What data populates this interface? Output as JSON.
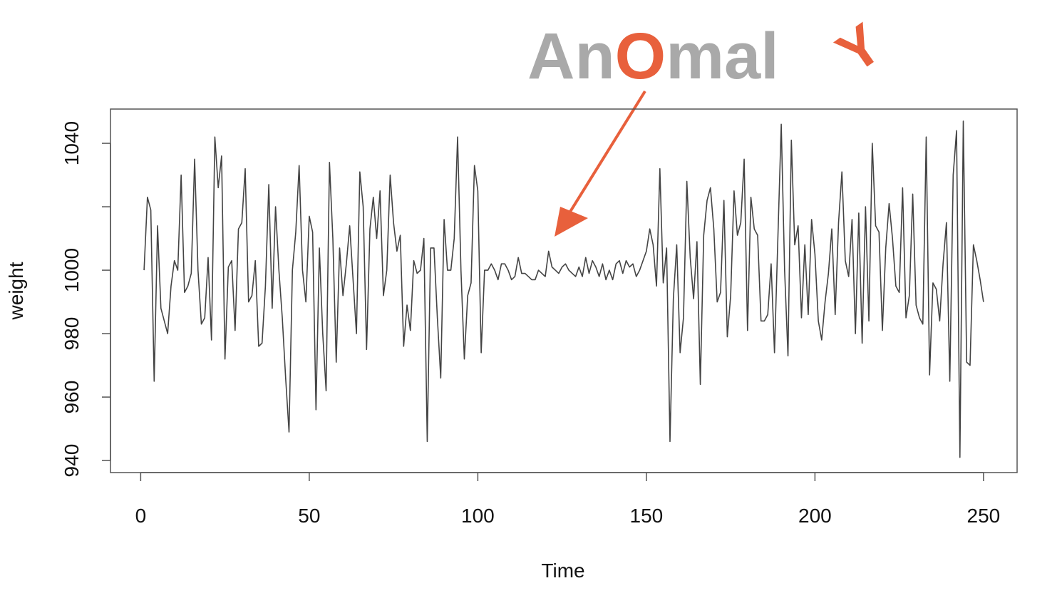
{
  "chart_data": {
    "type": "line",
    "annotation": [
      "An",
      "O",
      "mal",
      "Y"
    ],
    "xlabel": "Time",
    "ylabel": "weight",
    "x": [
      1,
      2,
      3,
      4,
      5,
      6,
      7,
      8,
      9,
      10,
      11,
      12,
      13,
      14,
      15,
      16,
      17,
      18,
      19,
      20,
      21,
      22,
      23,
      24,
      25,
      26,
      27,
      28,
      29,
      30,
      31,
      32,
      33,
      34,
      35,
      36,
      37,
      38,
      39,
      40,
      41,
      42,
      43,
      44,
      45,
      46,
      47,
      48,
      49,
      50,
      51,
      52,
      53,
      54,
      55,
      56,
      57,
      58,
      59,
      60,
      61,
      62,
      63,
      64,
      65,
      66,
      67,
      68,
      69,
      70,
      71,
      72,
      73,
      74,
      75,
      76,
      77,
      78,
      79,
      80,
      81,
      82,
      83,
      84,
      85,
      86,
      87,
      88,
      89,
      90,
      91,
      92,
      93,
      94,
      95,
      96,
      97,
      98,
      99,
      100,
      101,
      102,
      103,
      104,
      105,
      106,
      107,
      108,
      109,
      110,
      111,
      112,
      113,
      114,
      115,
      116,
      117,
      118,
      119,
      120,
      121,
      122,
      123,
      124,
      125,
      126,
      127,
      128,
      129,
      130,
      131,
      132,
      133,
      134,
      135,
      136,
      137,
      138,
      139,
      140,
      141,
      142,
      143,
      144,
      145,
      146,
      147,
      148,
      149,
      150,
      151,
      152,
      153,
      154,
      155,
      156,
      157,
      158,
      159,
      160,
      161,
      162,
      163,
      164,
      165,
      166,
      167,
      168,
      169,
      170,
      171,
      172,
      173,
      174,
      175,
      176,
      177,
      178,
      179,
      180,
      181,
      182,
      183,
      184,
      185,
      186,
      187,
      188,
      189,
      190,
      191,
      192,
      193,
      194,
      195,
      196,
      197,
      198,
      199,
      200,
      201,
      202,
      203,
      204,
      205,
      206,
      207,
      208,
      209,
      210,
      211,
      212,
      213,
      214,
      215,
      216,
      217,
      218,
      219,
      220,
      221,
      222,
      223,
      224,
      225,
      226,
      227,
      228,
      229,
      230,
      231,
      232,
      233,
      234,
      235,
      236,
      237,
      238,
      239,
      240,
      241,
      242,
      243,
      244,
      245,
      246,
      247,
      248,
      249,
      250
    ],
    "series": [
      {
        "name": "weight",
        "color": "#444444",
        "values": [
          1000,
          1023,
          1019,
          965,
          1014,
          988,
          984,
          980,
          995,
          1003,
          1000,
          1030,
          993,
          995,
          999,
          1035,
          1000,
          983,
          985,
          1004,
          978,
          1042,
          1026,
          1036,
          972,
          1001,
          1003,
          981,
          1013,
          1015,
          1032,
          990,
          992,
          1003,
          976,
          977,
          995,
          1027,
          988,
          1020,
          1000,
          985,
          966,
          949,
          1000,
          1012,
          1033,
          1000,
          990,
          1017,
          1012,
          956,
          1007,
          980,
          962,
          1034,
          1010,
          971,
          1007,
          992,
          1002,
          1014,
          997,
          980,
          1031,
          1020,
          975,
          1013,
          1023,
          1010,
          1025,
          992,
          1000,
          1030,
          1015,
          1006,
          1011,
          976,
          989,
          981,
          1003,
          999,
          1000,
          1010,
          946,
          1007,
          1007,
          985,
          966,
          1016,
          1000,
          1000,
          1010,
          1042,
          1000,
          972,
          992,
          996,
          1033,
          1025,
          974,
          1000,
          1000,
          1002,
          1000,
          997,
          1002,
          1002,
          1000,
          997,
          998,
          1004,
          999,
          999,
          998,
          997,
          997,
          1000,
          999,
          998,
          1006,
          1001,
          1000,
          999,
          1001,
          1002,
          1000,
          999,
          998,
          1001,
          998,
          1004,
          999,
          1003,
          1001,
          998,
          1002,
          997,
          1000,
          997,
          1002,
          1003,
          999,
          1003,
          1001,
          1002,
          998,
          1000,
          1003,
          1006,
          1013,
          1008,
          995,
          1032,
          996,
          1007,
          946,
          991,
          1008,
          974,
          985,
          1028,
          1004,
          991,
          1009,
          964,
          1011,
          1022,
          1026,
          1013,
          990,
          993,
          1022,
          979,
          992,
          1025,
          1011,
          1015,
          1035,
          981,
          1023,
          1013,
          1011,
          984,
          984,
          986,
          1002,
          974,
          1010,
          1046,
          1000,
          973,
          1041,
          1008,
          1014,
          985,
          1008,
          986,
          1016,
          1005,
          984,
          978,
          990,
          999,
          1013,
          986,
          1015,
          1031,
          1003,
          998,
          1016,
          980,
          1018,
          977,
          1020,
          984,
          1040,
          1014,
          1012,
          981,
          1007,
          1021,
          1010,
          995,
          993,
          1026,
          985,
          992,
          1024,
          989,
          985,
          983,
          1042,
          967,
          996,
          994,
          984,
          1002,
          1015,
          965,
          1030,
          1044,
          941,
          1047,
          971,
          970,
          1008,
          1003,
          997,
          990
        ]
      }
    ],
    "xlim": [
      -8.96,
      259.96
    ],
    "xticks": [
      0,
      50,
      100,
      150,
      200,
      250
    ],
    "ylim": [
      936.2,
      1050.8
    ],
    "yticks": [
      940,
      960,
      980,
      1000,
      {
        "value": 1020,
        "label": null
      },
      1040
    ],
    "grid": false
  }
}
